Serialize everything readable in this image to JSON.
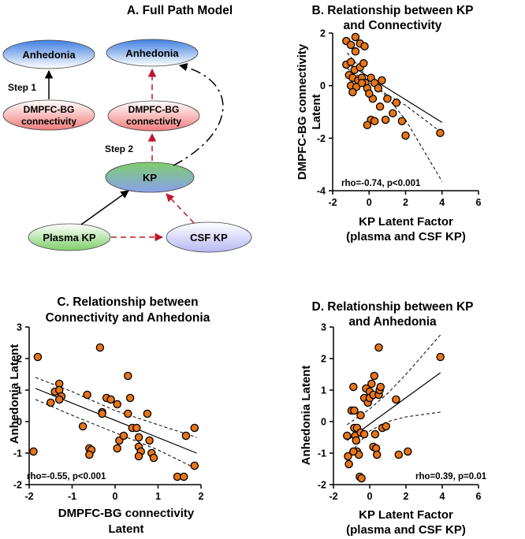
{
  "path_model": {
    "title": "A. Full Path Model",
    "nodes": {
      "anhedonia_left": "Anhedonia",
      "dmpfc_left_line1": "DMPFC-BG",
      "dmpfc_left_line2": "connectivity",
      "anhedonia_right": "Anhedonia",
      "dmpfc_right_line1": "DMPFC-BG",
      "dmpfc_right_line2": "connectivity",
      "kp": "KP",
      "plasma_kp": "Plasma KP",
      "csf_kp": "CSF KP"
    },
    "step1": "Step 1",
    "step2": "Step 2",
    "colors": {
      "blue": "#3f7fe0",
      "red": "#f27c7c",
      "green": "#7fce6b",
      "lavender": "#b8b8f2",
      "arrow_red": "#c0162a"
    }
  },
  "chart_data": [
    {
      "id": "B",
      "type": "scatter",
      "title_line1": "B. Relationship between KP",
      "title_line2": "and Connectivity",
      "xlabel_line1": "KP Latent Factor",
      "xlabel_line2": "(plasma and CSF KP)",
      "ylabel_line1": "DMPFC-BG connectivity",
      "ylabel_line2": "Latent",
      "xlim": [
        -2,
        6
      ],
      "ylim": [
        -4,
        2
      ],
      "xticks": [
        -2,
        0,
        2,
        4,
        6
      ],
      "yticks": [
        -4,
        -2,
        0,
        2
      ],
      "annotation": "rho=-0.74, p<0.001",
      "fit": {
        "x0": -1.2,
        "y0": 0.85,
        "x1": 4.0,
        "y1": -1.4
      },
      "band_upper": [
        [
          -1.2,
          0.65
        ],
        [
          0.0,
          0.1
        ],
        [
          1.0,
          -0.35
        ],
        [
          2.0,
          -0.75
        ],
        [
          4.0,
          -1.8
        ]
      ],
      "band_lower": [
        [
          -1.2,
          1.25
        ],
        [
          0.0,
          0.25
        ],
        [
          1.0,
          -0.45
        ],
        [
          2.0,
          -1.3
        ],
        [
          4.0,
          -3.65
        ]
      ],
      "points": [
        [
          -1.25,
          1.7
        ],
        [
          -1.0,
          1.55
        ],
        [
          -0.75,
          1.85
        ],
        [
          -0.5,
          1.6
        ],
        [
          -0.25,
          1.5
        ],
        [
          -0.75,
          1.3
        ],
        [
          -1.25,
          0.8
        ],
        [
          -1.0,
          0.9
        ],
        [
          -0.8,
          0.6
        ],
        [
          -0.5,
          0.7
        ],
        [
          -0.3,
          0.85
        ],
        [
          -1.1,
          0.4
        ],
        [
          -0.9,
          0.3
        ],
        [
          -0.6,
          0.2
        ],
        [
          -0.4,
          0.3
        ],
        [
          -0.2,
          0.1
        ],
        [
          0.1,
          0.3
        ],
        [
          0.3,
          0.1
        ],
        [
          0.5,
          -0.1
        ],
        [
          0.7,
          0.2
        ],
        [
          -1.0,
          0.0
        ],
        [
          -0.7,
          -0.05
        ],
        [
          -0.1,
          -0.1
        ],
        [
          -0.9,
          -0.25
        ],
        [
          0.2,
          -0.5
        ],
        [
          0.6,
          -0.8
        ],
        [
          1.0,
          -0.5
        ],
        [
          1.3,
          -1.05
        ],
        [
          0.9,
          -1.3
        ],
        [
          0.1,
          -1.3
        ],
        [
          0.3,
          -1.35
        ],
        [
          -0.1,
          -1.5
        ],
        [
          1.5,
          -0.65
        ],
        [
          1.8,
          -1.35
        ],
        [
          2.0,
          -1.9
        ],
        [
          3.9,
          -1.8
        ],
        [
          -0.4,
          0.1
        ],
        [
          0.0,
          -0.3
        ]
      ]
    },
    {
      "id": "C",
      "type": "scatter",
      "title_line1": "C. Relationship between",
      "title_line2": "Connectivity and Anhedonia",
      "xlabel_line1": "DMPFC-BG connectivity",
      "xlabel_line2": "Latent",
      "ylabel_line1": "Anhedonia Latent",
      "ylabel_line2": "",
      "xlim": [
        -2,
        2
      ],
      "ylim": [
        -2,
        3
      ],
      "xticks": [
        -2,
        -1,
        0,
        1,
        2
      ],
      "yticks": [
        -2,
        -1,
        0,
        1,
        2,
        3
      ],
      "annotation": "rho=-0.55, p<0.001",
      "fit": {
        "x0": -1.85,
        "y0": 1.05,
        "x1": 1.9,
        "y1": -1.0
      },
      "band_upper": [
        [
          -1.85,
          1.4
        ],
        [
          -1.0,
          0.95
        ],
        [
          0.0,
          0.35
        ],
        [
          1.0,
          -0.1
        ],
        [
          1.9,
          -0.5
        ]
      ],
      "band_lower": [
        [
          -1.85,
          0.7
        ],
        [
          -1.0,
          0.2
        ],
        [
          0.0,
          -0.35
        ],
        [
          1.0,
          -0.9
        ],
        [
          1.9,
          -1.5
        ]
      ],
      "points": [
        [
          -1.8,
          2.05
        ],
        [
          -1.9,
          -0.95
        ],
        [
          -1.5,
          0.6
        ],
        [
          -1.4,
          0.95
        ],
        [
          -1.3,
          1.2
        ],
        [
          -1.3,
          1.0
        ],
        [
          -1.25,
          0.8
        ],
        [
          -1.3,
          0.7
        ],
        [
          -0.75,
          -0.15
        ],
        [
          -0.65,
          0.85
        ],
        [
          -0.6,
          -0.85
        ],
        [
          -0.55,
          -0.9
        ],
        [
          -0.6,
          -1.05
        ],
        [
          -0.35,
          2.35
        ],
        [
          -0.3,
          0.3
        ],
        [
          -0.2,
          0.75
        ],
        [
          -0.1,
          0.7
        ],
        [
          0.05,
          0.55
        ],
        [
          0.1,
          -0.6
        ],
        [
          0.05,
          -0.85
        ],
        [
          0.2,
          -0.45
        ],
        [
          0.3,
          0.25
        ],
        [
          0.3,
          1.45
        ],
        [
          0.35,
          0.75
        ],
        [
          0.4,
          -0.2
        ],
        [
          0.5,
          -0.2
        ],
        [
          0.55,
          -0.5
        ],
        [
          0.55,
          -0.8
        ],
        [
          0.6,
          -0.95
        ],
        [
          0.55,
          -1.1
        ],
        [
          0.75,
          0.25
        ],
        [
          0.8,
          -0.6
        ],
        [
          0.85,
          -1.0
        ],
        [
          0.9,
          -1.15
        ],
        [
          1.45,
          -1.75
        ],
        [
          1.6,
          -1.75
        ],
        [
          1.65,
          -0.45
        ],
        [
          1.85,
          -0.2
        ],
        [
          1.85,
          -1.4
        ],
        [
          -0.3,
          0.25
        ]
      ]
    },
    {
      "id": "D",
      "type": "scatter",
      "title_line1": "D. Relationship between KP",
      "title_line2": "and Anhedonia",
      "xlabel_line1": "KP Latent Factor",
      "xlabel_line2": "(plasma and CSF KP)",
      "ylabel_line1": "Anhedonia Latent",
      "ylabel_line2": "",
      "xlim": [
        -2,
        6
      ],
      "ylim": [
        -2,
        3
      ],
      "xticks": [
        -2,
        0,
        2,
        4,
        6
      ],
      "yticks": [
        -2,
        -1,
        0,
        1,
        2,
        3
      ],
      "annotation": "rho=0.39, p=0.01",
      "fit": {
        "x0": -1.25,
        "y0": -0.6,
        "x1": 3.9,
        "y1": 1.55
      },
      "band_upper": [
        [
          -1.25,
          -0.1
        ],
        [
          0.0,
          0.4
        ],
        [
          1.0,
          0.9
        ],
        [
          2.0,
          1.5
        ],
        [
          3.9,
          2.75
        ]
      ],
      "band_lower": [
        [
          -1.25,
          -1.1
        ],
        [
          0.0,
          -0.3
        ],
        [
          1.0,
          0.0
        ],
        [
          2.0,
          0.15
        ],
        [
          3.9,
          0.3
        ]
      ],
      "points": [
        [
          -1.25,
          -0.45
        ],
        [
          -1.2,
          -1.1
        ],
        [
          -1.15,
          -1.35
        ],
        [
          -1.0,
          0.35
        ],
        [
          -0.9,
          1.1
        ],
        [
          -0.85,
          0.35
        ],
        [
          -0.85,
          -0.2
        ],
        [
          -0.8,
          -0.45
        ],
        [
          -0.75,
          -0.6
        ],
        [
          -0.7,
          -0.2
        ],
        [
          -0.7,
          -0.95
        ],
        [
          -0.6,
          -1.05
        ],
        [
          -0.55,
          -1.75
        ],
        [
          -0.45,
          -1.8
        ],
        [
          -0.5,
          0.2
        ],
        [
          -0.5,
          -0.35
        ],
        [
          -0.3,
          0.75
        ],
        [
          -0.3,
          -0.4
        ],
        [
          -0.2,
          1.05
        ],
        [
          -0.1,
          0.6
        ],
        [
          0.0,
          0.95
        ],
        [
          0.0,
          0.75
        ],
        [
          0.1,
          1.2
        ],
        [
          0.2,
          -0.8
        ],
        [
          0.2,
          0.85
        ],
        [
          0.25,
          1.45
        ],
        [
          0.3,
          -0.4
        ],
        [
          0.35,
          -0.85
        ],
        [
          0.4,
          -1.05
        ],
        [
          0.5,
          2.35
        ],
        [
          0.5,
          0.85
        ],
        [
          0.55,
          1.0
        ],
        [
          0.6,
          1.1
        ],
        [
          0.7,
          -0.2
        ],
        [
          0.9,
          -0.15
        ],
        [
          1.45,
          0.7
        ],
        [
          1.6,
          -1.05
        ],
        [
          2.1,
          -0.95
        ],
        [
          3.9,
          2.05
        ],
        [
          -0.9,
          -0.95
        ]
      ]
    }
  ],
  "style": {
    "marker_fill": "#e87518",
    "marker_stroke": "#000000"
  }
}
